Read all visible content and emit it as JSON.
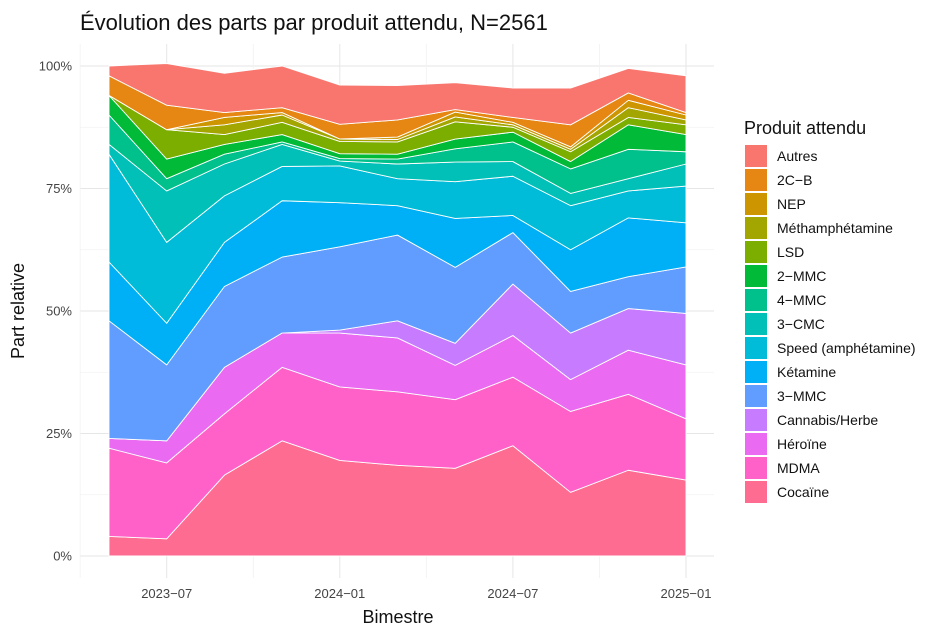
{
  "chart_data": {
    "type": "area",
    "title": "Évolution des parts par produit attendu, N=2561",
    "xlabel": "Bimestre",
    "ylabel": "Part relative",
    "x": [
      "2023-05",
      "2023-07",
      "2023-09",
      "2023-11",
      "2024-01",
      "2024-03",
      "2024-05",
      "2024-07",
      "2024-09",
      "2024-11",
      "2025-01"
    ],
    "x_ticks": [
      {
        "x": "2023-07",
        "label": "2023−07"
      },
      {
        "x": "2024-01",
        "label": "2024−01"
      },
      {
        "x": "2024-07",
        "label": "2024−07"
      },
      {
        "x": "2025-01",
        "label": "2025−01"
      }
    ],
    "y_ticks": [
      {
        "value": 0,
        "label": "0%"
      },
      {
        "value": 25,
        "label": "25%"
      },
      {
        "value": 50,
        "label": "50%"
      },
      {
        "value": 75,
        "label": "75%"
      },
      {
        "value": 100,
        "label": "100%"
      }
    ],
    "ylim": [
      0,
      100
    ],
    "stacked": true,
    "grid": true,
    "legend_title": "Produit attendu",
    "legend_position": "right",
    "series": [
      {
        "name": "Cocaïne",
        "color": "#FF6C91",
        "values": [
          4,
          3.5,
          16.5,
          23.5,
          19.5,
          18.5,
          17.9,
          22.5,
          13,
          17.5,
          15.5
        ]
      },
      {
        "name": "MDMA",
        "color": "#FF61C9",
        "values": [
          18,
          15.5,
          12.5,
          15,
          15,
          15,
          14,
          14,
          16.5,
          15.5,
          12.5
        ]
      },
      {
        "name": "Héroïne",
        "color": "#EA6AF1",
        "values": [
          2,
          4.5,
          9.5,
          7,
          11,
          11,
          7,
          8.5,
          6.5,
          9,
          11
        ]
      },
      {
        "name": "Cannabis/Herbe",
        "color": "#C77CFF",
        "values": [
          0,
          0,
          0,
          0,
          0.6,
          3.5,
          4.5,
          10.5,
          9.5,
          8.5,
          10.5
        ]
      },
      {
        "name": "3−MMC",
        "color": "#619CFF",
        "values": [
          24,
          15.5,
          16.5,
          15.5,
          17,
          17.5,
          15.5,
          10.5,
          8.5,
          6.5,
          9.5
        ]
      },
      {
        "name": "Kétamine",
        "color": "#00B0F6",
        "values": [
          12,
          8.5,
          9,
          11.5,
          9,
          6,
          10,
          3.5,
          8.5,
          12,
          9
        ]
      },
      {
        "name": "Speed (amphétamine)",
        "color": "#00BCD8",
        "values": [
          22,
          16.5,
          9.5,
          7,
          7.5,
          5.5,
          7.5,
          8,
          9,
          5.5,
          7.5
        ]
      },
      {
        "name": "3−CMC",
        "color": "#00C0B8",
        "values": [
          2,
          10.5,
          6.5,
          4.5,
          1,
          3,
          4,
          3,
          2.5,
          2.5,
          4.5
        ]
      },
      {
        "name": "4−MMC",
        "color": "#00C08B",
        "values": [
          6,
          2.5,
          2,
          0.5,
          0.5,
          1,
          2.7,
          4,
          5,
          6,
          2.5
        ]
      },
      {
        "name": "2−MMC",
        "color": "#00BA38",
        "values": [
          4,
          4,
          2,
          1.5,
          1,
          1,
          2,
          2,
          1.5,
          5,
          3.5
        ]
      },
      {
        "name": "LSD",
        "color": "#7CAE00",
        "values": [
          0,
          6,
          2,
          2.5,
          2.5,
          2.5,
          3.5,
          1,
          2,
          1.5,
          2
        ]
      },
      {
        "name": "Méthamphétamine",
        "color": "#A3A500",
        "values": [
          0,
          0,
          2,
          1.5,
          0.5,
          0.5,
          1,
          0.5,
          0.5,
          2,
          1
        ]
      },
      {
        "name": "NEP",
        "color": "#CD9600",
        "values": [
          0,
          0,
          1.5,
          0.5,
          0,
          0.5,
          1,
          0.5,
          0.5,
          1.5,
          1
        ]
      },
      {
        "name": "2C−B",
        "color": "#E68613",
        "values": [
          4,
          5,
          1,
          1,
          3,
          3.5,
          0.5,
          1,
          4.5,
          1.5,
          0.5
        ]
      },
      {
        "name": "Autres",
        "color": "#F8766D",
        "values": [
          2,
          8.5,
          8,
          8.5,
          8,
          7,
          5.5,
          6,
          7.5,
          5,
          7.5
        ]
      }
    ]
  }
}
